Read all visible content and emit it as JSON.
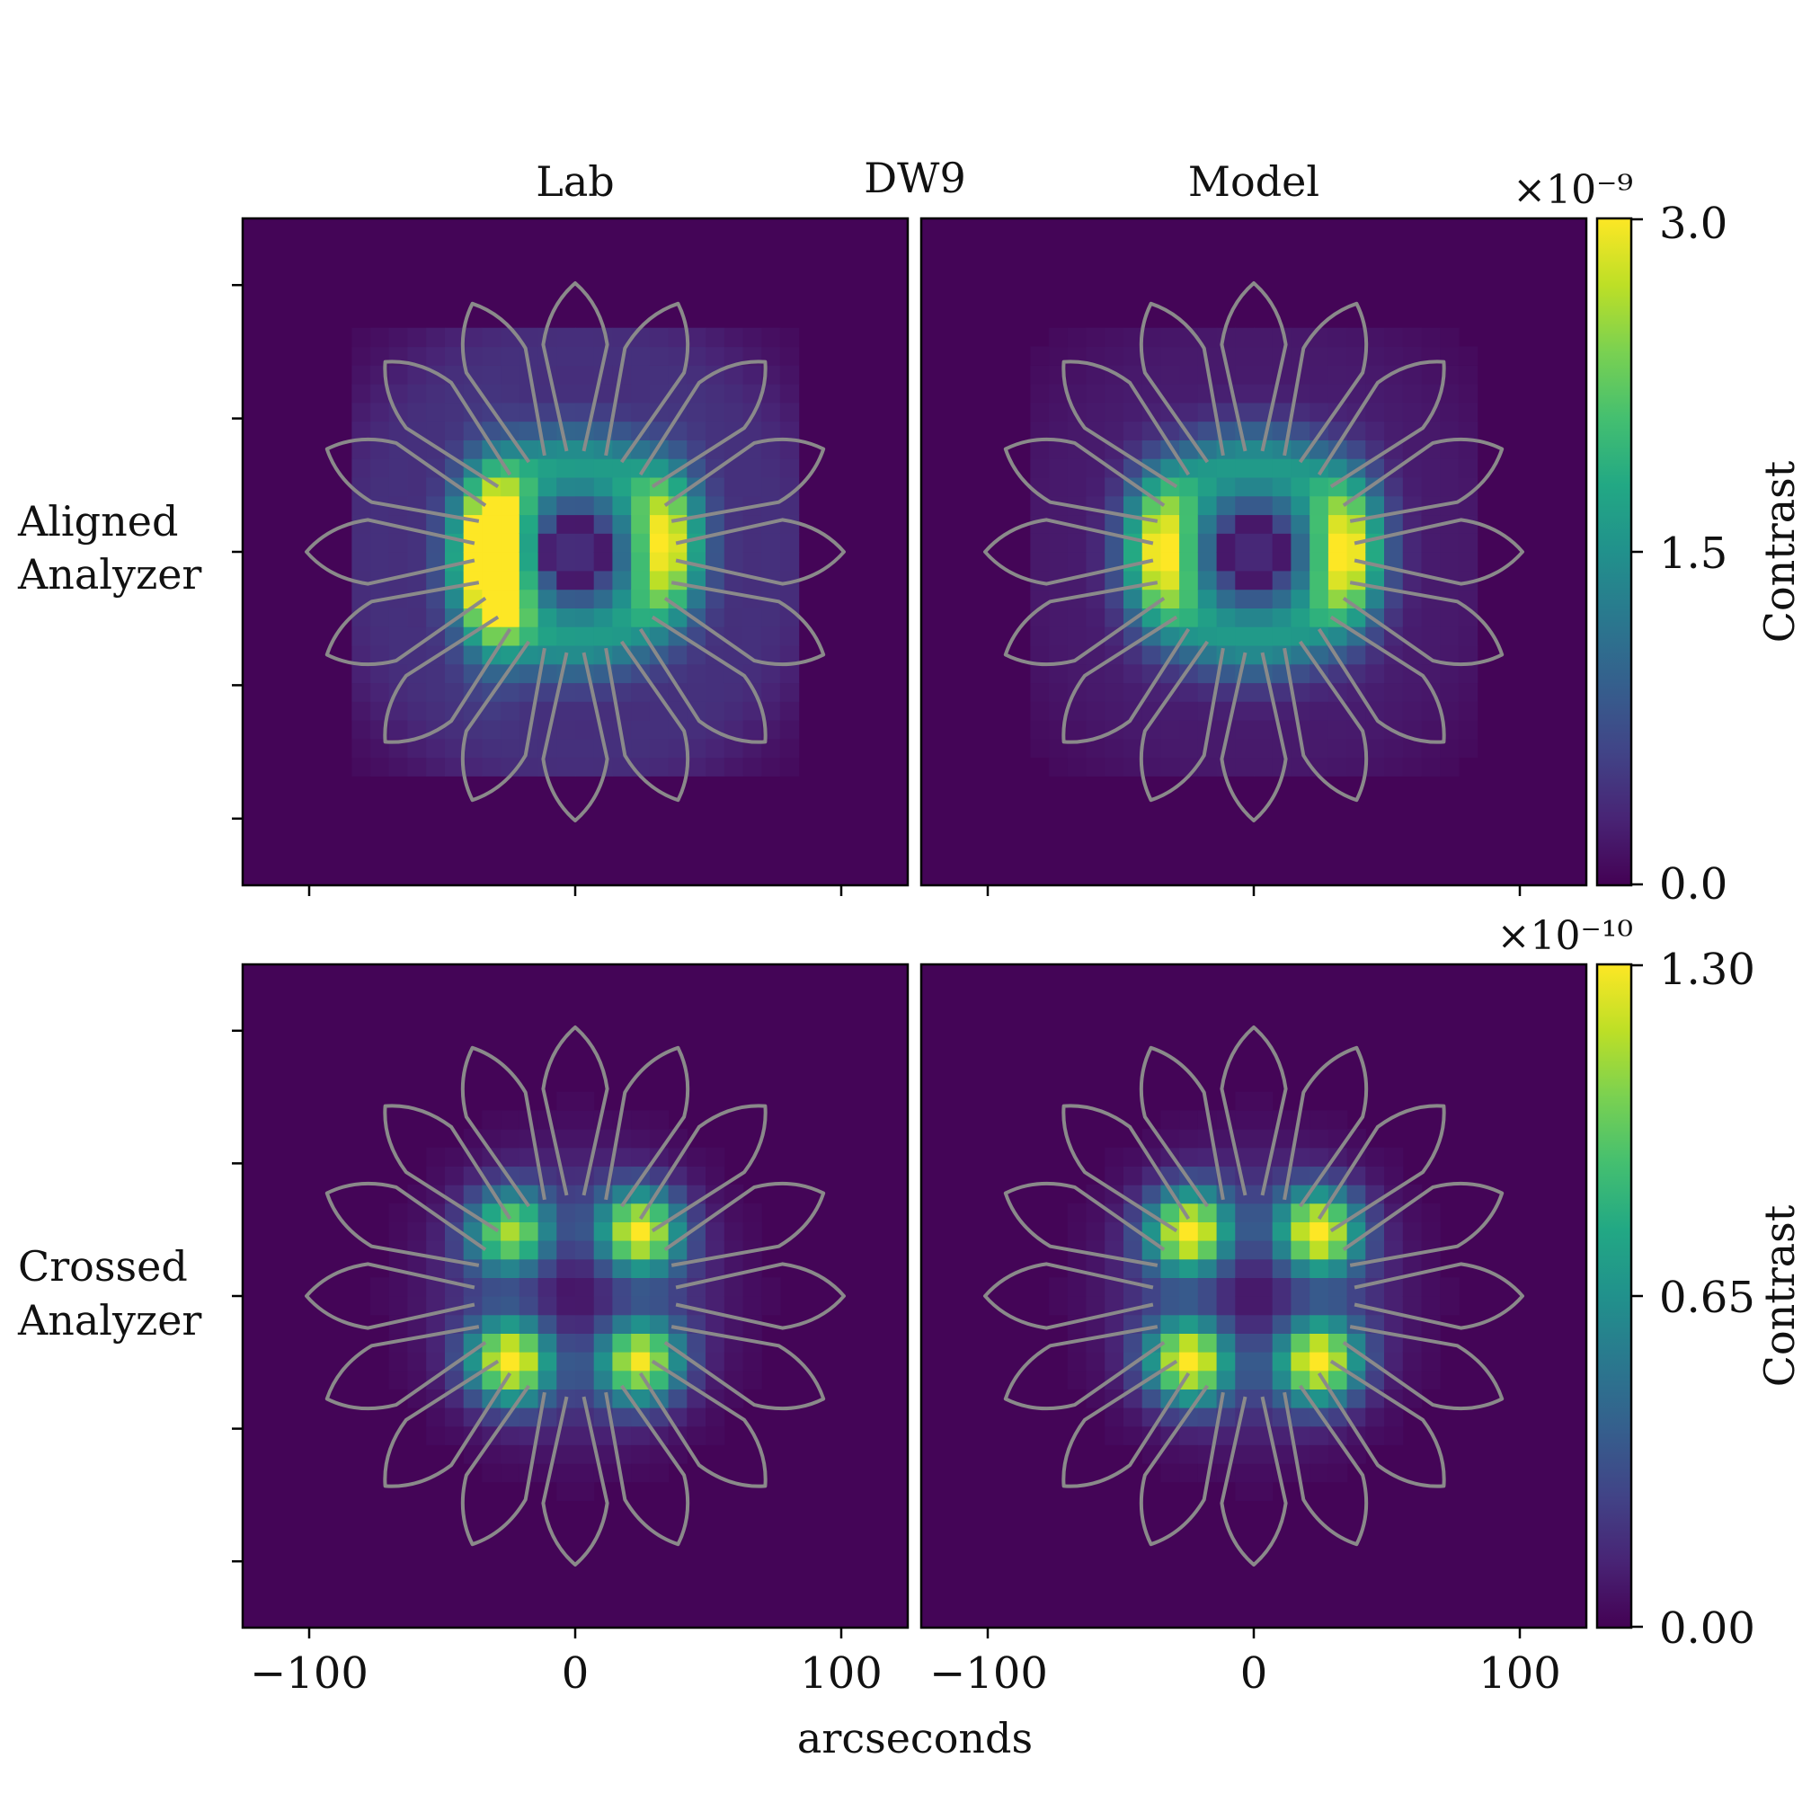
{
  "figure": {
    "title": "DW9",
    "column_titles": [
      "Lab",
      "Model"
    ],
    "row_labels": [
      [
        "Aligned",
        "Analyzer"
      ],
      [
        "Crossed",
        "Analyzer"
      ]
    ],
    "xlabel": "arcseconds",
    "outline_color": "#8a8a8a",
    "colormap": "viridis"
  },
  "chart_data": [
    {
      "type": "heatmap",
      "panel": "Aligned Analyzer / Lab",
      "xlim": [
        -125,
        125
      ],
      "ylim": [
        -125,
        125
      ],
      "pattern": "aligned",
      "xticks": [
        -100,
        0,
        100
      ],
      "yticks": [
        -100,
        -50,
        0,
        50,
        100
      ],
      "peak_lobes": [
        {
          "x": -31,
          "y": -12,
          "value": 3.0
        },
        {
          "x": -31,
          "y": 8,
          "value": 2.6
        },
        {
          "x": 35,
          "y": 4,
          "value": 2.7
        }
      ],
      "center_value": 0.45,
      "outer_halo": 0.35
    },
    {
      "type": "heatmap",
      "panel": "Aligned Analyzer / Model",
      "xlim": [
        -125,
        125
      ],
      "ylim": [
        -125,
        125
      ],
      "pattern": "aligned",
      "xticks": [
        -100,
        0,
        100
      ],
      "yticks": [
        -100,
        -50,
        0,
        50,
        100
      ],
      "peak_lobes": [
        {
          "x": -36,
          "y": 0,
          "value": 2.8
        },
        {
          "x": 36,
          "y": 0,
          "value": 2.8
        }
      ],
      "center_value": 0.4,
      "outer_halo": 0.15
    },
    {
      "type": "heatmap",
      "panel": "Crossed Analyzer / Lab",
      "xlim": [
        -125,
        125
      ],
      "ylim": [
        -125,
        125
      ],
      "pattern": "crossed",
      "xticks": [
        -100,
        0,
        100
      ],
      "yticks": [
        -100,
        -50,
        0,
        50,
        100
      ],
      "peak_lobes": [
        {
          "x": -24,
          "y": 24,
          "value": 1.0
        },
        {
          "x": 24,
          "y": 24,
          "value": 1.2
        },
        {
          "x": -24,
          "y": -24,
          "value": 1.25
        },
        {
          "x": 24,
          "y": -24,
          "value": 1.15
        }
      ],
      "center_value": 0.05
    },
    {
      "type": "heatmap",
      "panel": "Crossed Analyzer / Model",
      "xlim": [
        -125,
        125
      ],
      "ylim": [
        -125,
        125
      ],
      "pattern": "crossed",
      "xticks": [
        -100,
        0,
        100
      ],
      "yticks": [
        -100,
        -50,
        0,
        50,
        100
      ],
      "peak_lobes": [
        {
          "x": -24,
          "y": 24,
          "value": 1.25
        },
        {
          "x": 24,
          "y": 24,
          "value": 1.25
        },
        {
          "x": -24,
          "y": -24,
          "value": 1.25
        },
        {
          "x": 24,
          "y": -24,
          "value": 1.25
        }
      ],
      "center_value": 0.02
    }
  ],
  "colorbars": [
    {
      "label": "Contrast",
      "multiplier": "×10⁻⁹",
      "min": 0.0,
      "max": 3.0,
      "ticks": [
        "0.0",
        "1.5",
        "3.0"
      ],
      "tick_values": [
        0,
        1.5,
        3.0
      ]
    },
    {
      "label": "Contrast",
      "multiplier": "×10⁻¹⁰",
      "min": 0.0,
      "max": 1.3,
      "ticks": [
        "0.00",
        "0.65",
        "1.30"
      ],
      "tick_values": [
        0,
        0.65,
        1.3
      ]
    }
  ],
  "xtick_labels": [
    "−100",
    "0",
    "100"
  ],
  "starshade": {
    "petals": 16,
    "tip_radius": 101,
    "notch_radius": 38
  }
}
